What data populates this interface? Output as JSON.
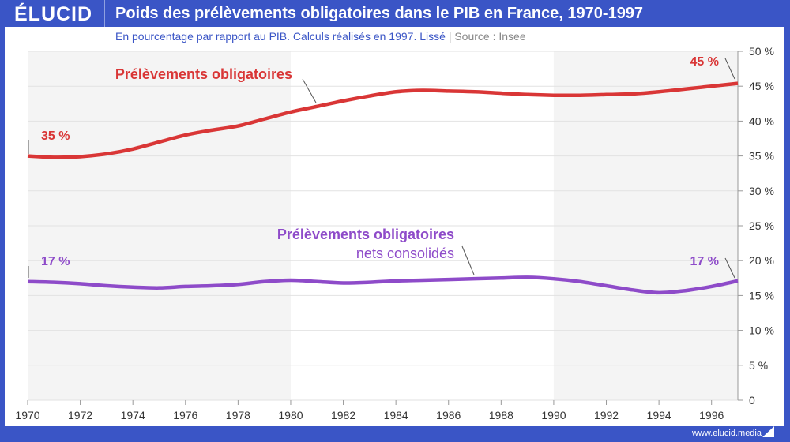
{
  "header": {
    "logo": "ÉLUCID",
    "title": "Poids des prélèvements obligatoires dans le PIB en France, 1970-1997"
  },
  "subtitle": {
    "text": "En pourcentage par rapport au PIB. Calculs réalisés en 1997. Lissé",
    "separator": "|",
    "source": "Source : Insee"
  },
  "footer": {
    "url": "www.elucid.media"
  },
  "chart_data": {
    "type": "line",
    "x": [
      1970,
      1971,
      1972,
      1973,
      1974,
      1975,
      1976,
      1977,
      1978,
      1979,
      1980,
      1981,
      1982,
      1983,
      1984,
      1985,
      1986,
      1987,
      1988,
      1989,
      1990,
      1991,
      1992,
      1993,
      1994,
      1995,
      1996,
      1997
    ],
    "xlim": [
      1970,
      1997
    ],
    "ylim": [
      0,
      50
    ],
    "x_ticks": [
      "1970",
      "1972",
      "1974",
      "1976",
      "1978",
      "1980",
      "1982",
      "1984",
      "1986",
      "1988",
      "1990",
      "1992",
      "1994",
      "1996"
    ],
    "y_ticks": [
      "0",
      "5 %",
      "10 %",
      "15 %",
      "20 %",
      "25 %",
      "30 %",
      "35 %",
      "40 %",
      "45 %",
      "50 %"
    ],
    "y_axis_position": "right",
    "grid": true,
    "shaded_periods": [
      [
        1970,
        1980
      ],
      [
        1990,
        1997
      ]
    ],
    "series": [
      {
        "name": "Prélèvements obligatoires",
        "color": "#d93636",
        "values": [
          35.0,
          34.8,
          34.9,
          35.3,
          36.0,
          37.0,
          38.0,
          38.7,
          39.3,
          40.3,
          41.3,
          42.1,
          42.9,
          43.6,
          44.2,
          44.4,
          44.3,
          44.2,
          44.0,
          43.8,
          43.7,
          43.7,
          43.8,
          43.9,
          44.2,
          44.6,
          45.0,
          45.4
        ],
        "label_lines": [
          "Prélèvements obligatoires"
        ],
        "start_label": "35 %",
        "end_label": "45 %"
      },
      {
        "name": "Prélèvements obligatoires nets consolidés",
        "color": "#8e4bc9",
        "values": [
          17.0,
          16.9,
          16.7,
          16.4,
          16.2,
          16.1,
          16.3,
          16.4,
          16.6,
          17.0,
          17.2,
          17.0,
          16.8,
          16.9,
          17.1,
          17.2,
          17.3,
          17.4,
          17.5,
          17.6,
          17.4,
          17.0,
          16.4,
          15.8,
          15.4,
          15.7,
          16.3,
          17.1
        ],
        "label_lines": [
          "Prélèvements obligatoires",
          "nets consolidés"
        ],
        "start_label": "17 %",
        "end_label": "17 %"
      }
    ]
  }
}
